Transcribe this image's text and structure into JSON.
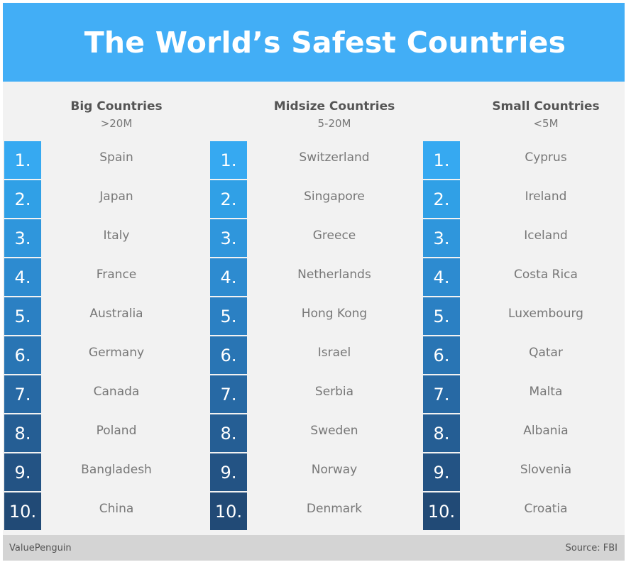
{
  "title": "The World’s Safest Countries",
  "rank_colors": [
    "#36a9f1",
    "#30a0e6",
    "#2f96dc",
    "#2d8bd0",
    "#2b80c3",
    "#2975b4",
    "#2769a4",
    "#255e94",
    "#235384",
    "#214a76"
  ],
  "columns": [
    {
      "title": "Big Countries",
      "subtitle": ">20M",
      "items": [
        {
          "rank": "1.",
          "country": "Spain"
        },
        {
          "rank": "2.",
          "country": "Japan"
        },
        {
          "rank": "3.",
          "country": "Italy"
        },
        {
          "rank": "4.",
          "country": "France"
        },
        {
          "rank": "5.",
          "country": "Australia"
        },
        {
          "rank": "6.",
          "country": "Germany"
        },
        {
          "rank": "7.",
          "country": "Canada"
        },
        {
          "rank": "8.",
          "country": "Poland"
        },
        {
          "rank": "9.",
          "country": "Bangladesh"
        },
        {
          "rank": "10.",
          "country": "China"
        }
      ]
    },
    {
      "title": "Midsize Countries",
      "subtitle": "5-20M",
      "items": [
        {
          "rank": "1.",
          "country": "Switzerland"
        },
        {
          "rank": "2.",
          "country": "Singapore"
        },
        {
          "rank": "3.",
          "country": "Greece"
        },
        {
          "rank": "4.",
          "country": "Netherlands"
        },
        {
          "rank": "5.",
          "country": "Hong Kong"
        },
        {
          "rank": "6.",
          "country": "Israel"
        },
        {
          "rank": "7.",
          "country": "Serbia"
        },
        {
          "rank": "8.",
          "country": "Sweden"
        },
        {
          "rank": "9.",
          "country": "Norway"
        },
        {
          "rank": "10.",
          "country": "Denmark"
        }
      ]
    },
    {
      "title": "Small Countries",
      "subtitle": "<5M",
      "items": [
        {
          "rank": "1.",
          "country": "Cyprus"
        },
        {
          "rank": "2.",
          "country": "Ireland"
        },
        {
          "rank": "3.",
          "country": "Iceland"
        },
        {
          "rank": "4.",
          "country": "Costa Rica"
        },
        {
          "rank": "5.",
          "country": "Luxembourg"
        },
        {
          "rank": "6.",
          "country": "Qatar"
        },
        {
          "rank": "7.",
          "country": "Malta"
        },
        {
          "rank": "8.",
          "country": "Albania"
        },
        {
          "rank": "9.",
          "country": "Slovenia"
        },
        {
          "rank": "10.",
          "country": "Croatia"
        }
      ]
    }
  ],
  "footer": {
    "brand": "ValuePenguin",
    "source": "Source: FBI"
  }
}
